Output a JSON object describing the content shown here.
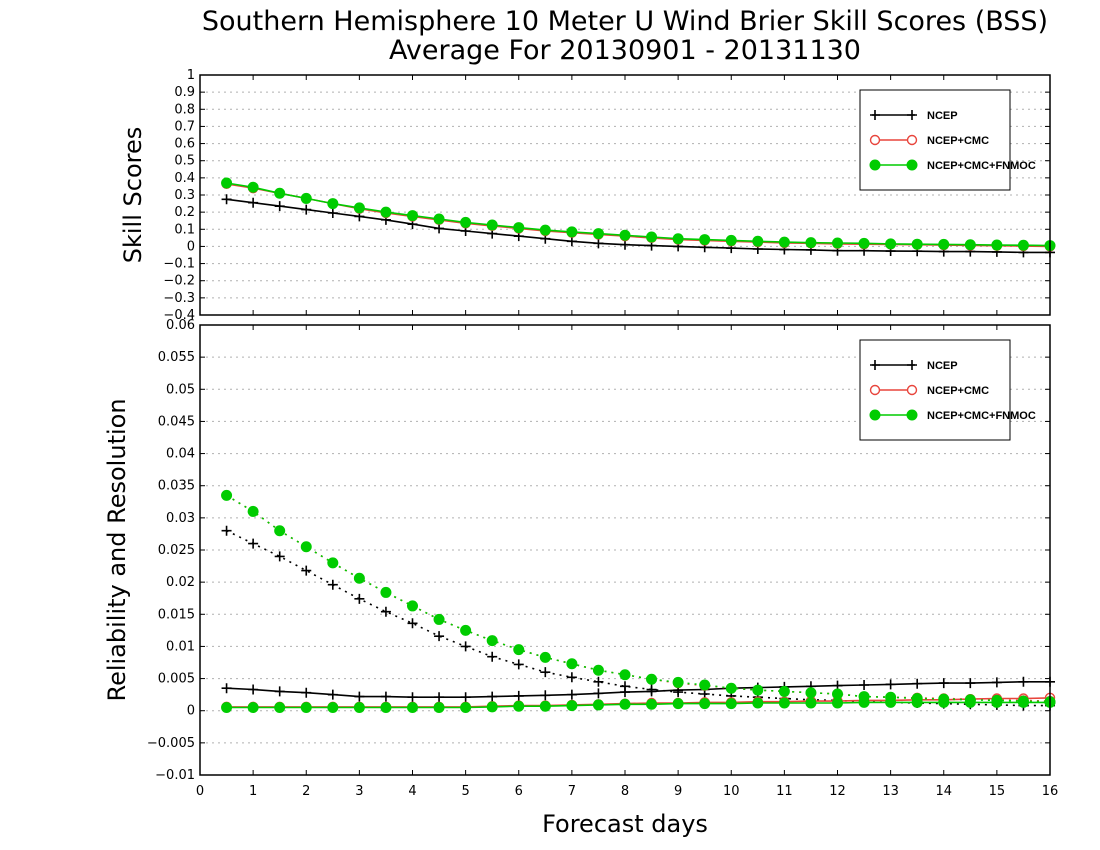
{
  "titles": {
    "line1": "Southern Hemisphere 10 Meter U Wind Brier Skill Scores (BSS)",
    "line2": "Average For 20130901 - 20131130"
  },
  "axes": {
    "xlabel": "Forecast days",
    "ylabel_top": "Skill Scores",
    "ylabel_bottom": "Reliability and Resolution"
  },
  "colors": {
    "ncep": "#000000",
    "cmc": "#e8453c",
    "fnmoc": "#00cc00"
  },
  "legend": {
    "entries": [
      "NCEP",
      "NCEP+CMC",
      "NCEP+CMC+FNMOC"
    ]
  },
  "chart_data": [
    {
      "type": "line",
      "panel": "top",
      "ylabel": "Skill Scores",
      "xlim": [
        0,
        16
      ],
      "ylim": [
        -0.4,
        1
      ],
      "x_ticks": [
        "0",
        "1",
        "2",
        "3",
        "4",
        "5",
        "6",
        "7",
        "8",
        "9",
        "10",
        "11",
        "12",
        "13",
        "14",
        "15",
        "16"
      ],
      "y_ticks": [
        "-0.4",
        "-0.3",
        "-0.2",
        "-0.1",
        "0",
        "0.1",
        "0.2",
        "0.3",
        "0.4",
        "0.5",
        "0.6",
        "0.7",
        "0.8",
        "0.9",
        "1"
      ],
      "grid": true,
      "legend_position": "top-right",
      "x": [
        0.5,
        1,
        1.5,
        2,
        2.5,
        3,
        3.5,
        4,
        4.5,
        5,
        5.5,
        6,
        6.5,
        7,
        7.5,
        8,
        8.5,
        9,
        9.5,
        10,
        10.5,
        11,
        11.5,
        12,
        12.5,
        13,
        13.5,
        14,
        14.5,
        15,
        15.5,
        16
      ],
      "series": [
        {
          "name": "NCEP",
          "style": "solid",
          "marker": "plus",
          "values": [
            0.275,
            0.255,
            0.235,
            0.215,
            0.195,
            0.175,
            0.155,
            0.13,
            0.105,
            0.09,
            0.075,
            0.06,
            0.045,
            0.03,
            0.018,
            0.01,
            0.005,
            0.0,
            -0.005,
            -0.01,
            -0.015,
            -0.018,
            -0.02,
            -0.025,
            -0.025,
            -0.027,
            -0.028,
            -0.03,
            -0.03,
            -0.032,
            -0.035,
            -0.035
          ]
        },
        {
          "name": "NCEP+CMC",
          "style": "solid",
          "marker": "open-circle",
          "values": [
            0.365,
            0.34,
            0.31,
            0.28,
            0.25,
            0.22,
            0.195,
            0.175,
            0.155,
            0.135,
            0.12,
            0.105,
            0.09,
            0.08,
            0.07,
            0.06,
            0.05,
            0.04,
            0.035,
            0.03,
            0.025,
            0.02,
            0.018,
            0.015,
            0.013,
            0.012,
            0.01,
            0.008,
            0.006,
            0.004,
            0.002,
            0.0
          ]
        },
        {
          "name": "NCEP+CMC+FNMOC",
          "style": "solid",
          "marker": "filled-circle",
          "values": [
            0.37,
            0.345,
            0.31,
            0.28,
            0.25,
            0.225,
            0.2,
            0.18,
            0.16,
            0.14,
            0.125,
            0.11,
            0.095,
            0.085,
            0.075,
            0.065,
            0.055,
            0.045,
            0.04,
            0.035,
            0.03,
            0.025,
            0.022,
            0.02,
            0.018,
            0.015,
            0.013,
            0.012,
            0.01,
            0.008,
            0.007,
            0.005
          ]
        }
      ]
    },
    {
      "type": "line",
      "panel": "bottom",
      "xlabel": "Forecast days",
      "ylabel": "Reliability and Resolution",
      "xlim": [
        0,
        16
      ],
      "ylim": [
        -0.01,
        0.06
      ],
      "x_ticks": [
        "0",
        "1",
        "2",
        "3",
        "4",
        "5",
        "6",
        "7",
        "8",
        "9",
        "10",
        "11",
        "12",
        "13",
        "14",
        "15",
        "16"
      ],
      "y_ticks": [
        "-0.01",
        "-0.005",
        "0",
        "0.005",
        "0.01",
        "0.015",
        "0.02",
        "0.025",
        "0.03",
        "0.035",
        "0.04",
        "0.045",
        "0.05",
        "0.055",
        "0.06"
      ],
      "grid": true,
      "legend_position": "top-right",
      "x": [
        0.5,
        1,
        1.5,
        2,
        2.5,
        3,
        3.5,
        4,
        4.5,
        5,
        5.5,
        6,
        6.5,
        7,
        7.5,
        8,
        8.5,
        9,
        9.5,
        10,
        10.5,
        11,
        11.5,
        12,
        12.5,
        13,
        13.5,
        14,
        14.5,
        15,
        15.5,
        16
      ],
      "series": [
        {
          "name": "NCEP",
          "metric": "reliability",
          "style": "solid",
          "marker": "plus",
          "values": [
            0.0035,
            0.0033,
            0.003,
            0.0028,
            0.0025,
            0.0022,
            0.0022,
            0.0021,
            0.0021,
            0.0021,
            0.0022,
            0.0023,
            0.0024,
            0.0025,
            0.0027,
            0.0029,
            0.003,
            0.0032,
            0.0033,
            0.0035,
            0.0036,
            0.0037,
            0.0038,
            0.0039,
            0.004,
            0.0041,
            0.0042,
            0.0043,
            0.0043,
            0.0044,
            0.0045,
            0.0045
          ]
        },
        {
          "name": "NCEP",
          "metric": "resolution",
          "style": "dotted",
          "marker": "plus",
          "values": [
            0.028,
            0.026,
            0.024,
            0.0218,
            0.0196,
            0.0174,
            0.0154,
            0.0136,
            0.0116,
            0.01,
            0.0084,
            0.0072,
            0.006,
            0.0052,
            0.0045,
            0.0038,
            0.0033,
            0.0029,
            0.0026,
            0.0023,
            0.0021,
            0.0019,
            0.0017,
            0.0016,
            0.0014,
            0.0013,
            0.0012,
            0.0011,
            0.001,
            0.0009,
            0.0008,
            0.0008
          ]
        },
        {
          "name": "NCEP+CMC",
          "metric": "reliability",
          "style": "solid",
          "marker": "open-circle",
          "values": [
            0.0006,
            0.0006,
            0.0006,
            0.0006,
            0.0006,
            0.0006,
            0.0006,
            0.0006,
            0.0006,
            0.0006,
            0.0007,
            0.0008,
            0.0008,
            0.0009,
            0.001,
            0.0011,
            0.0012,
            0.0012,
            0.0013,
            0.0013,
            0.0014,
            0.0014,
            0.0015,
            0.0015,
            0.0016,
            0.0016,
            0.0017,
            0.0017,
            0.0018,
            0.0019,
            0.0019,
            0.002
          ]
        },
        {
          "name": "NCEP+CMC",
          "metric": "resolution",
          "style": "dotted",
          "marker": "open-circle",
          "values": [
            0.0335,
            0.031,
            0.028,
            0.0255,
            0.023,
            0.0206,
            0.0184,
            0.0163,
            0.0142,
            0.0125,
            0.0109,
            0.0095,
            0.0083,
            0.0073,
            0.0063,
            0.0056,
            0.0049,
            0.0043,
            0.0039,
            0.0035,
            0.0032,
            0.003,
            0.0028,
            0.0026,
            0.0022,
            0.0021,
            0.002,
            0.0019,
            0.0018,
            0.0017,
            0.0016,
            0.0015
          ]
        },
        {
          "name": "NCEP+CMC+FNMOC",
          "metric": "reliability",
          "style": "solid",
          "marker": "filled-circle",
          "values": [
            0.0005,
            0.0005,
            0.0005,
            0.0005,
            0.0005,
            0.0005,
            0.0005,
            0.0005,
            0.0005,
            0.0005,
            0.0006,
            0.0007,
            0.0007,
            0.0008,
            0.0009,
            0.001,
            0.001,
            0.0011,
            0.0011,
            0.0011,
            0.0012,
            0.0012,
            0.0012,
            0.0012,
            0.0013,
            0.0013,
            0.0013,
            0.0013,
            0.0013,
            0.0013,
            0.0013,
            0.0013
          ]
        },
        {
          "name": "NCEP+CMC+FNMOC",
          "metric": "resolution",
          "style": "dotted",
          "marker": "filled-circle",
          "values": [
            0.0335,
            0.031,
            0.028,
            0.0255,
            0.023,
            0.0206,
            0.0184,
            0.0163,
            0.0142,
            0.0125,
            0.0109,
            0.0095,
            0.0083,
            0.0073,
            0.0063,
            0.0056,
            0.0049,
            0.0044,
            0.004,
            0.0035,
            0.0032,
            0.003,
            0.0028,
            0.0026,
            0.0022,
            0.0021,
            0.0019,
            0.0018,
            0.0017,
            0.0016,
            0.0015,
            0.0014
          ]
        }
      ]
    }
  ]
}
